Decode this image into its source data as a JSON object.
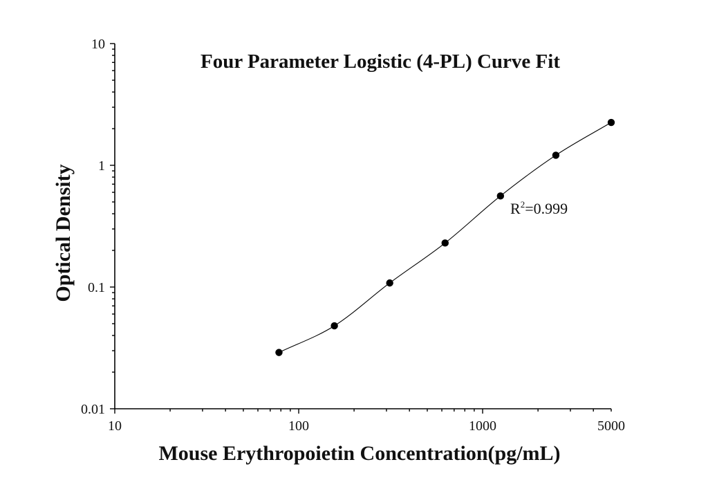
{
  "chart_data": {
    "type": "scatter",
    "title": "Four Parameter Logistic (4-PL) Curve Fit",
    "xlabel": "Mouse Erythropoietin Concentration(pg/mL)",
    "ylabel": "Optical Density",
    "x_scale": "log",
    "y_scale": "log",
    "xlim": [
      10,
      5000
    ],
    "ylim": [
      0.01,
      10
    ],
    "x_ticks": [
      10,
      100,
      1000,
      5000
    ],
    "x_tick_labels": [
      "10",
      "100",
      "1000",
      "5000"
    ],
    "y_ticks": [
      0.01,
      0.1,
      1,
      10
    ],
    "y_tick_labels": [
      "0.01",
      "0.1",
      "1",
      "10"
    ],
    "grid": false,
    "series": [
      {
        "points": [
          {
            "x": 78.1,
            "y": 0.029
          },
          {
            "x": 156.3,
            "y": 0.048
          },
          {
            "x": 312.5,
            "y": 0.108
          },
          {
            "x": 625,
            "y": 0.23
          },
          {
            "x": 1250,
            "y": 0.56
          },
          {
            "x": 2500,
            "y": 1.21
          },
          {
            "x": 5000,
            "y": 2.25
          }
        ],
        "fit": "4-PL curve"
      }
    ],
    "annotation": {
      "r_label": "R",
      "r_superscript": "2",
      "r_value": "=0.999"
    }
  }
}
